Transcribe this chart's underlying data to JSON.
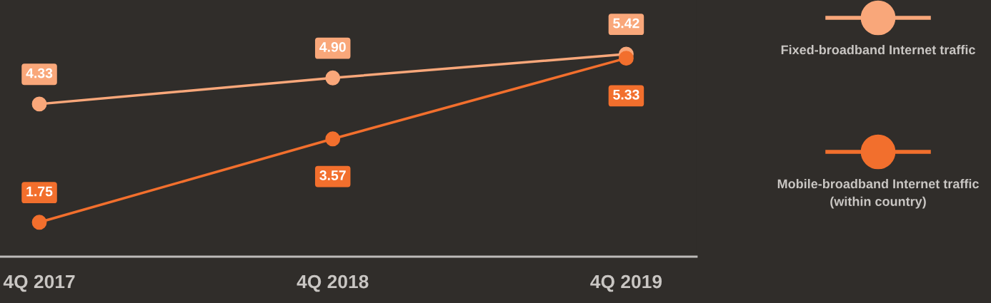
{
  "chart_data": {
    "type": "line",
    "categories": [
      "4Q 2017",
      "4Q 2018",
      "4Q 2019"
    ],
    "series": [
      {
        "name": "Fixed-broadband Internet traffic",
        "color": "#f9a77a",
        "values": [
          4.33,
          4.9,
          5.42
        ],
        "value_labels": [
          "4.33",
          "4.90",
          "5.42"
        ]
      },
      {
        "name": "Mobile-broadband Internet traffic\n(within country)",
        "color": "#f26f2d",
        "values": [
          1.75,
          3.57,
          5.33
        ],
        "value_labels": [
          "1.75",
          "3.57",
          "5.33"
        ]
      }
    ],
    "ylim": [
      1.0,
      6.6
    ],
    "marker": "circle",
    "legend": "right",
    "grid": false
  }
}
